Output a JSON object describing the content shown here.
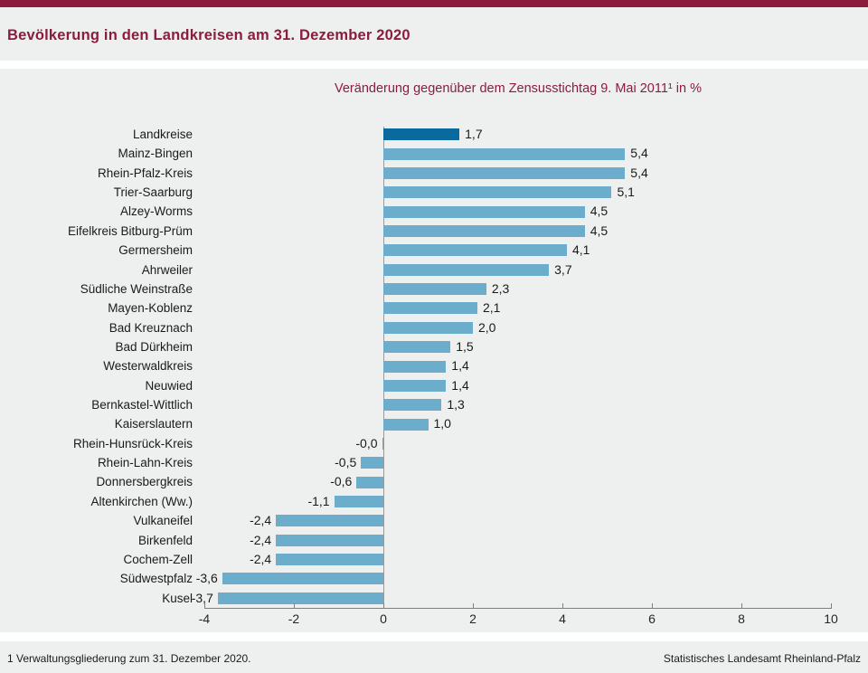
{
  "page": {
    "title": "Bevölkerung in den Landkreisen am 31. Dezember 2020",
    "footnote": "1 Verwaltungsgliederung  zum 31. Dezember 2020.",
    "attribution": "Statistisches Landesamt  Rheinland-Pfalz"
  },
  "colors": {
    "accent_burgundy": "#8b1c3d",
    "page_background": "#eef0ef",
    "separator_white": "#ffffff",
    "bar_highlight": "#0a6a9e",
    "bar_default": "#6cadcb",
    "axis_gray": "#7f7f7f",
    "text_dark": "#1a1a1a"
  },
  "chart_data": {
    "type": "bar",
    "orientation": "horizontal",
    "title": "Bevölkerung in den Landkreisen am 31. Dezember 2020",
    "subtitle": "Veränderung gegenüber dem Zensusstichtag  9. Mai 2011¹ in %",
    "unit": "%",
    "categories": [
      "Landkreise",
      "Mainz-Bingen",
      "Rhein-Pfalz-Kreis",
      "Trier-Saarburg",
      "Alzey-Worms",
      "Eifelkreis Bitburg-Prüm",
      "Germersheim",
      "Ahrweiler",
      "Südliche Weinstraße",
      "Mayen-Koblenz",
      "Bad Kreuznach",
      "Bad Dürkheim",
      "Westerwaldkreis",
      "Neuwied",
      "Bernkastel-Wittlich",
      "Kaiserslautern",
      "Rhein-Hunsrück-Kreis",
      "Rhein-Lahn-Kreis",
      "Donnersbergkreis",
      "Altenkirchen (Ww.)",
      "Vulkaneifel",
      "Birkenfeld",
      "Cochem-Zell",
      "Südwestpfalz",
      "Kusel"
    ],
    "values": [
      1.7,
      5.4,
      5.4,
      5.1,
      4.5,
      4.5,
      4.1,
      3.7,
      2.3,
      2.1,
      2.0,
      1.5,
      1.4,
      1.4,
      1.3,
      1.0,
      -0.0,
      -0.5,
      -0.6,
      -1.1,
      -2.4,
      -2.4,
      -2.4,
      -3.6,
      -3.7
    ],
    "value_labels": [
      "1,7",
      "5,4",
      "5,4",
      "5,1",
      "4,5",
      "4,5",
      "4,1",
      "3,7",
      "2,3",
      "2,1",
      "2,0",
      "1,5",
      "1,4",
      "1,4",
      "1,3",
      "1,0",
      "-0,0",
      "-0,5",
      "-0,6",
      "-1,1",
      "-2,4",
      "-2,4",
      "-2,4",
      "-3,6",
      "-3,7"
    ],
    "highlight_index": 0,
    "xlim": [
      -4,
      10
    ],
    "xticks": [
      -4,
      -2,
      0,
      2,
      4,
      6,
      8,
      10
    ],
    "xtick_labels": [
      "-4",
      "-2",
      "0",
      "2",
      "4",
      "6",
      "8",
      "10"
    ],
    "legend": [],
    "grid": false
  }
}
